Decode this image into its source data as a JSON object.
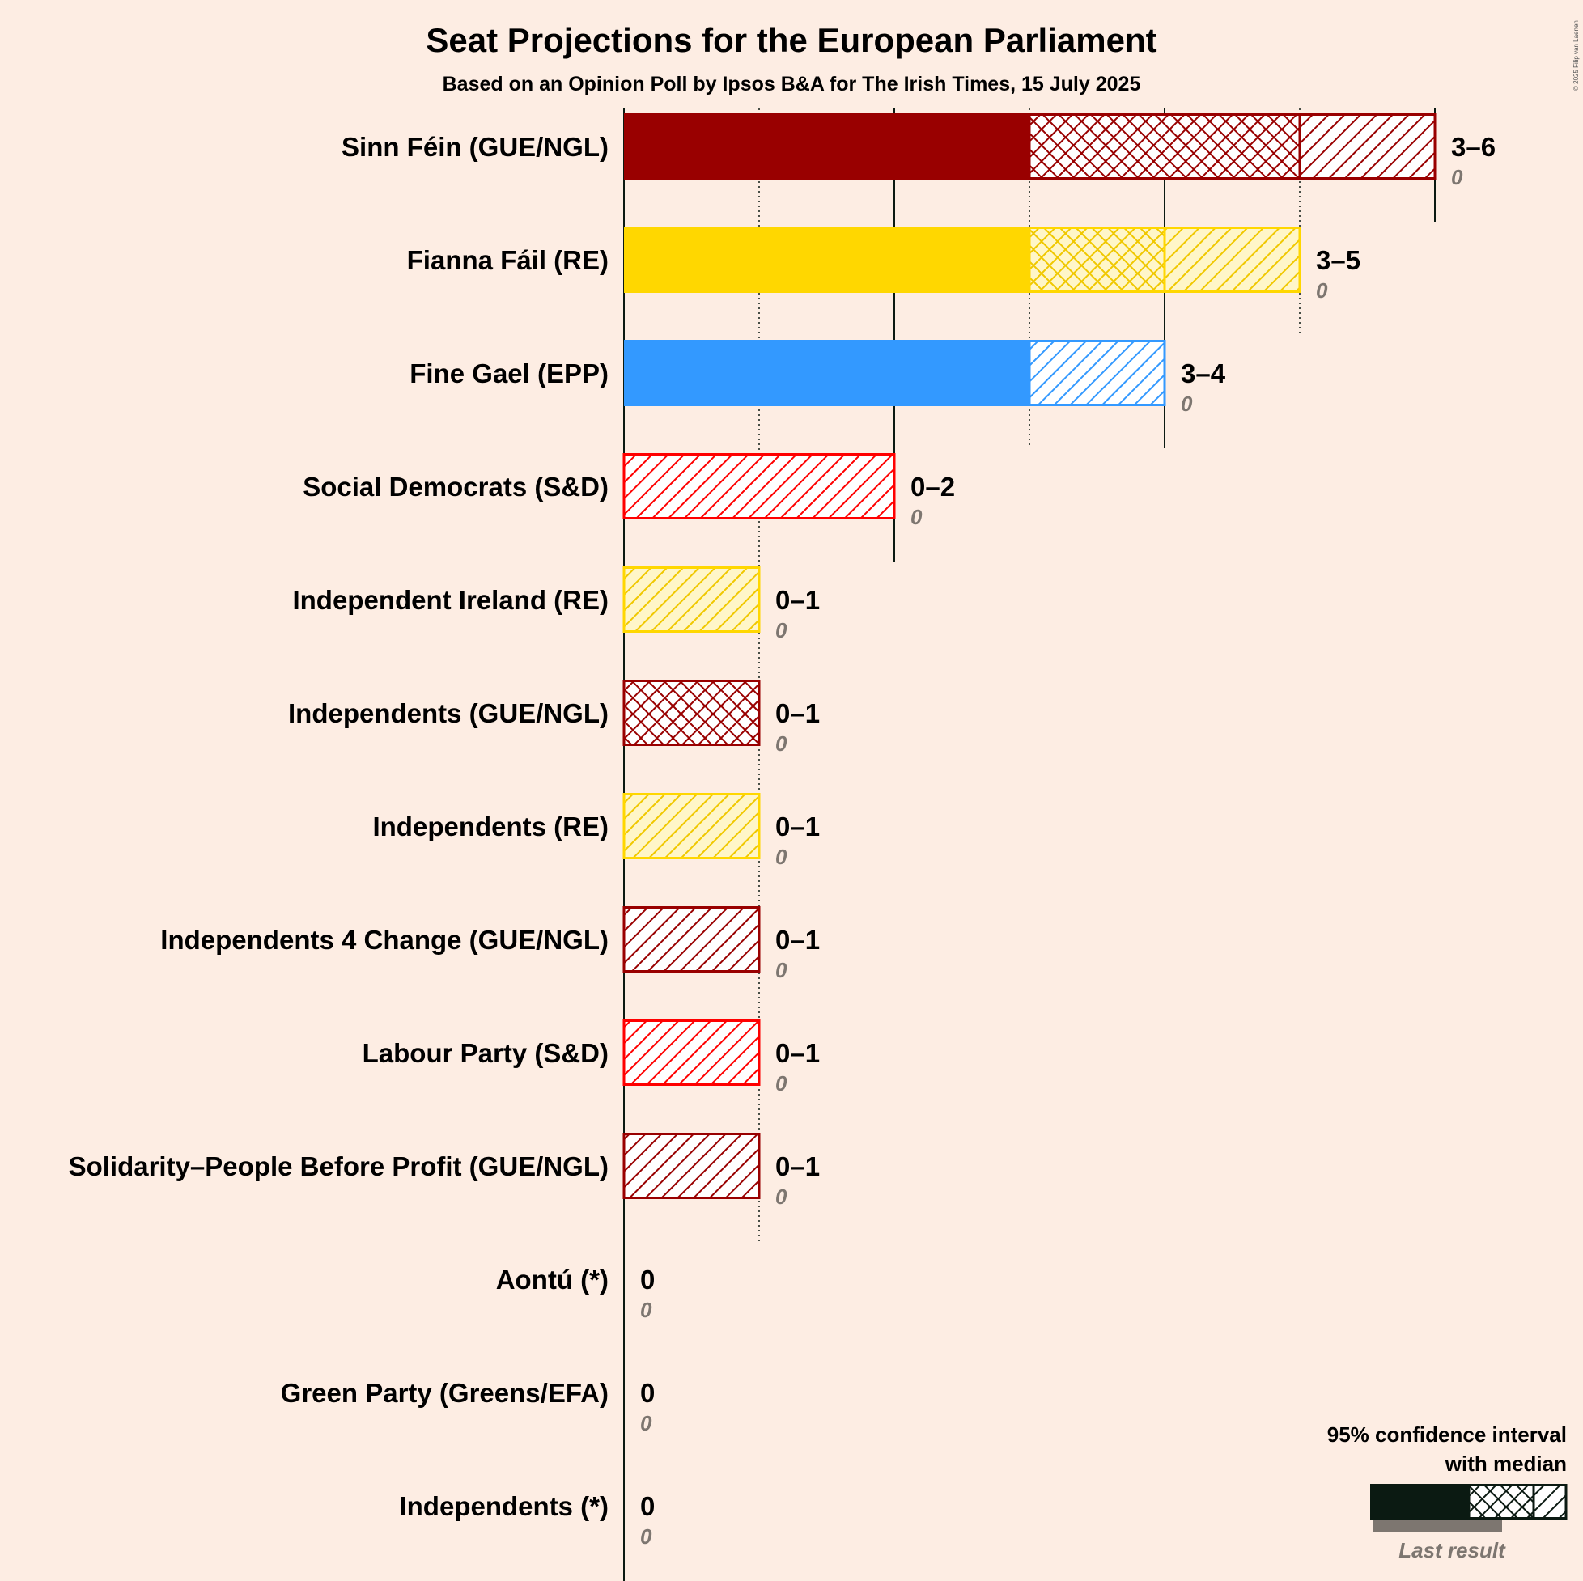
{
  "chart_data": {
    "type": "bar",
    "title": "Seat Projections for the European Parliament",
    "subtitle": "Based on an Opinion Poll by Ipsos B&A for The Irish Times, 15 July 2025",
    "copyright": "© 2025 Filip van Laenen",
    "xlim": [
      0,
      6
    ],
    "gridlines": [
      1,
      2,
      3,
      4,
      5,
      6
    ],
    "parties": [
      {
        "name": "Sinn Féin (GUE/NGL)",
        "color": "#990000",
        "low": 3,
        "median": 5,
        "high": 6,
        "range_label": "3–6",
        "last_result": 0,
        "last_label": "0"
      },
      {
        "name": "Fianna Fáil (RE)",
        "color": "#FFD700",
        "low": 3,
        "median": 4,
        "high": 5,
        "range_label": "3–5",
        "last_result": 0,
        "last_label": "0"
      },
      {
        "name": "Fine Gael (EPP)",
        "color": "#3399FF",
        "low": 3,
        "median": 3,
        "high": 4,
        "range_label": "3–4",
        "last_result": 0,
        "last_label": "0"
      },
      {
        "name": "Social Democrats (S&D)",
        "color": "#FF0000",
        "low": 0,
        "median": 0,
        "high": 2,
        "range_label": "0–2",
        "last_result": 0,
        "last_label": "0"
      },
      {
        "name": "Independent Ireland (RE)",
        "color": "#FFD700",
        "low": 0,
        "median": 0,
        "high": 1,
        "range_label": "0–1",
        "last_result": 0,
        "last_label": "0"
      },
      {
        "name": "Independents (GUE/NGL)",
        "color": "#990000",
        "low": 0,
        "median": 1,
        "high": 1,
        "range_label": "0–1",
        "last_result": 0,
        "last_label": "0"
      },
      {
        "name": "Independents (RE)",
        "color": "#FFD700",
        "low": 0,
        "median": 0,
        "high": 1,
        "range_label": "0–1",
        "last_result": 0,
        "last_label": "0"
      },
      {
        "name": "Independents 4 Change (GUE/NGL)",
        "color": "#990000",
        "low": 0,
        "median": 0,
        "high": 1,
        "range_label": "0–1",
        "last_result": 0,
        "last_label": "0"
      },
      {
        "name": "Labour Party (S&D)",
        "color": "#FF0000",
        "low": 0,
        "median": 0,
        "high": 1,
        "range_label": "0–1",
        "last_result": 0,
        "last_label": "0"
      },
      {
        "name": "Solidarity–People Before Profit (GUE/NGL)",
        "color": "#990000",
        "low": 0,
        "median": 0,
        "high": 1,
        "range_label": "0–1",
        "last_result": 0,
        "last_label": "0"
      },
      {
        "name": "Aontú (*)",
        "color": "#0B1A12",
        "low": 0,
        "median": 0,
        "high": 0,
        "range_label": "0",
        "last_result": 0,
        "last_label": "0"
      },
      {
        "name": "Green Party (Greens/EFA)",
        "color": "#0B1A12",
        "low": 0,
        "median": 0,
        "high": 0,
        "range_label": "0",
        "last_result": 0,
        "last_label": "0"
      },
      {
        "name": "Independents (*)",
        "color": "#0B1A12",
        "low": 0,
        "median": 0,
        "high": 0,
        "range_label": "0",
        "last_result": 0,
        "last_label": "0"
      }
    ],
    "legend": {
      "line1": "95% confidence interval",
      "line2": "with median",
      "last_result": "Last result",
      "color": "#0B1A12",
      "last_color": "#7D7670"
    }
  }
}
